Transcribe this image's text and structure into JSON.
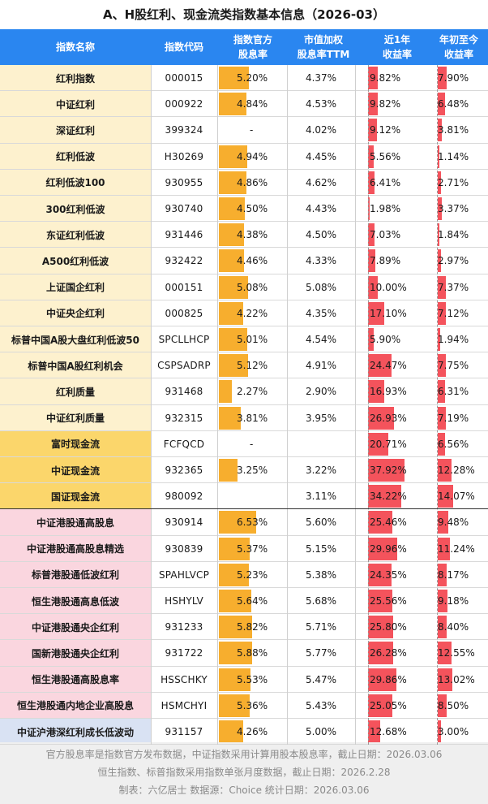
{
  "title": "A、H股红利、现金流类指数基本信息（2026-03）",
  "headers": {
    "name": "指数名称",
    "code": "指数代码",
    "official_yield": [
      "指数官方",
      "股息率"
    ],
    "ttm_yield": [
      "市值加权",
      "股息率TTM"
    ],
    "return_1y": [
      "近1年",
      "收益率"
    ],
    "return_ytd": [
      "年初至今",
      "收益率"
    ]
  },
  "colors": {
    "header": "#2a86f0",
    "yield_bar": "#f7ae2e",
    "return_bar": "#f4535c"
  },
  "rows": [
    {
      "group": "a",
      "name": "红利指数",
      "code": "000015",
      "official": 5.2,
      "official_text": "5.20%",
      "ttm_text": "4.37%",
      "r1y": 9.82,
      "r1y_text": "9.82%",
      "ytd": 7.9,
      "ytd_text": "7.90%"
    },
    {
      "group": "a",
      "name": "中证红利",
      "code": "000922",
      "official": 4.84,
      "official_text": "4.84%",
      "ttm_text": "4.53%",
      "r1y": 9.82,
      "r1y_text": "9.82%",
      "ytd": 6.48,
      "ytd_text": "6.48%"
    },
    {
      "group": "a",
      "name": "深证红利",
      "code": "399324",
      "official": null,
      "official_text": "-",
      "ttm_text": "4.02%",
      "r1y": 9.12,
      "r1y_text": "9.12%",
      "ytd": 3.81,
      "ytd_text": "3.81%"
    },
    {
      "group": "a",
      "name": "红利低波",
      "code": "H30269",
      "official": 4.94,
      "official_text": "4.94%",
      "ttm_text": "4.45%",
      "r1y": 5.56,
      "r1y_text": "5.56%",
      "ytd": 1.14,
      "ytd_text": "1.14%"
    },
    {
      "group": "a",
      "name": "红利低波100",
      "code": "930955",
      "official": 4.86,
      "official_text": "4.86%",
      "ttm_text": "4.62%",
      "r1y": 6.41,
      "r1y_text": "6.41%",
      "ytd": 2.71,
      "ytd_text": "2.71%"
    },
    {
      "group": "a",
      "name": "300红利低波",
      "code": "930740",
      "official": 4.5,
      "official_text": "4.50%",
      "ttm_text": "4.43%",
      "r1y": 1.98,
      "r1y_text": "1.98%",
      "ytd": 3.37,
      "ytd_text": "3.37%"
    },
    {
      "group": "a",
      "name": "东证红利低波",
      "code": "931446",
      "official": 4.38,
      "official_text": "4.38%",
      "ttm_text": "4.50%",
      "r1y": 7.03,
      "r1y_text": "7.03%",
      "ytd": 1.84,
      "ytd_text": "1.84%"
    },
    {
      "group": "a",
      "name": "A500红利低波",
      "code": "932422",
      "official": 4.46,
      "official_text": "4.46%",
      "ttm_text": "4.33%",
      "r1y": 7.89,
      "r1y_text": "7.89%",
      "ytd": 2.97,
      "ytd_text": "2.97%"
    },
    {
      "group": "a",
      "name": "上证国企红利",
      "code": "000151",
      "official": 5.08,
      "official_text": "5.08%",
      "ttm_text": "5.08%",
      "r1y": 10.0,
      "r1y_text": "10.00%",
      "ytd": 7.37,
      "ytd_text": "7.37%"
    },
    {
      "group": "a",
      "name": "中证央企红利",
      "code": "000825",
      "official": 4.22,
      "official_text": "4.22%",
      "ttm_text": "4.35%",
      "r1y": 17.1,
      "r1y_text": "17.10%",
      "ytd": 7.12,
      "ytd_text": "7.12%"
    },
    {
      "group": "a",
      "name": "标普中国A股大盘红利低波50",
      "code": "SPCLLHCP",
      "official": 5.01,
      "official_text": "5.01%",
      "ttm_text": "4.54%",
      "r1y": 5.9,
      "r1y_text": "5.90%",
      "ytd": 1.94,
      "ytd_text": "1.94%"
    },
    {
      "group": "a",
      "name": "标普中国A股红利机会",
      "code": "CSPSADRP",
      "official": 5.12,
      "official_text": "5.12%",
      "ttm_text": "4.91%",
      "r1y": 24.47,
      "r1y_text": "24.47%",
      "ytd": 7.75,
      "ytd_text": "7.75%"
    },
    {
      "group": "a",
      "name": "红利质量",
      "code": "931468",
      "official": 2.27,
      "official_text": "2.27%",
      "ttm_text": "2.90%",
      "r1y": 16.93,
      "r1y_text": "16.93%",
      "ytd": 6.31,
      "ytd_text": "6.31%"
    },
    {
      "group": "a",
      "name": "中证红利质量",
      "code": "932315",
      "official": 3.81,
      "official_text": "3.81%",
      "ttm_text": "3.95%",
      "r1y": 26.93,
      "r1y_text": "26.93%",
      "ytd": 7.19,
      "ytd_text": "7.19%"
    },
    {
      "group": "cash",
      "name": "富时现金流",
      "code": "FCFQCD",
      "official": null,
      "official_text": "-",
      "ttm_text": "",
      "r1y": 20.71,
      "r1y_text": "20.71%",
      "ytd": 6.56,
      "ytd_text": "6.56%"
    },
    {
      "group": "cash",
      "name": "中证现金流",
      "code": "932365",
      "official": 3.25,
      "official_text": "3.25%",
      "ttm_text": "3.22%",
      "r1y": 37.92,
      "r1y_text": "37.92%",
      "ytd": 12.28,
      "ytd_text": "12.28%"
    },
    {
      "group": "cash",
      "name": "国证现金流",
      "code": "980092",
      "official": null,
      "official_text": "",
      "ttm_text": "3.11%",
      "r1y": 34.22,
      "r1y_text": "34.22%",
      "ytd": 14.07,
      "ytd_text": "14.07%"
    },
    {
      "group": "hk",
      "name": "中证港股通高股息",
      "code": "930914",
      "official": 6.53,
      "official_text": "6.53%",
      "ttm_text": "5.60%",
      "r1y": 25.46,
      "r1y_text": "25.46%",
      "ytd": 9.48,
      "ytd_text": "9.48%"
    },
    {
      "group": "hk",
      "name": "中证港股通高股息精选",
      "code": "930839",
      "official": 5.37,
      "official_text": "5.37%",
      "ttm_text": "5.15%",
      "r1y": 29.96,
      "r1y_text": "29.96%",
      "ytd": 11.24,
      "ytd_text": "11.24%"
    },
    {
      "group": "hk",
      "name": "标普港股通低波红利",
      "code": "SPAHLVCP",
      "official": 5.23,
      "official_text": "5.23%",
      "ttm_text": "5.38%",
      "r1y": 24.35,
      "r1y_text": "24.35%",
      "ytd": 8.17,
      "ytd_text": "8.17%"
    },
    {
      "group": "hk",
      "name": "恒生港股通高息低波",
      "code": "HSHYLV",
      "official": 5.64,
      "official_text": "5.64%",
      "ttm_text": "5.68%",
      "r1y": 25.56,
      "r1y_text": "25.56%",
      "ytd": 9.18,
      "ytd_text": "9.18%"
    },
    {
      "group": "hk",
      "name": "中证港股通央企红利",
      "code": "931233",
      "official": 5.82,
      "official_text": "5.82%",
      "ttm_text": "5.71%",
      "r1y": 25.8,
      "r1y_text": "25.80%",
      "ytd": 8.4,
      "ytd_text": "8.40%"
    },
    {
      "group": "hk",
      "name": "国新港股通央企红利",
      "code": "931722",
      "official": 5.88,
      "official_text": "5.88%",
      "ttm_text": "5.77%",
      "r1y": 26.28,
      "r1y_text": "26.28%",
      "ytd": 12.55,
      "ytd_text": "12.55%"
    },
    {
      "group": "hk",
      "name": "恒生港股通高股息率",
      "code": "HSSCHKY",
      "official": 5.53,
      "official_text": "5.53%",
      "ttm_text": "5.47%",
      "r1y": 29.86,
      "r1y_text": "29.86%",
      "ytd": 13.02,
      "ytd_text": "13.02%"
    },
    {
      "group": "hk",
      "name": "恒生港股通内地企业高股息",
      "code": "HSMCHYI",
      "official": 5.36,
      "official_text": "5.36%",
      "ttm_text": "5.43%",
      "r1y": 25.05,
      "r1y_text": "25.05%",
      "ytd": 8.5,
      "ytd_text": "8.50%"
    },
    {
      "group": "low",
      "name": "中证沪港深红利成长低波动",
      "code": "931157",
      "official": 4.26,
      "official_text": "4.26%",
      "ttm_text": "5.00%",
      "r1y": 12.68,
      "r1y_text": "12.68%",
      "ytd": 3.0,
      "ytd_text": "3.00%"
    }
  ],
  "footer": [
    "官方股息率是指数官方发布数据，中证指数采用计算用股本股息率，截止日期：2026.03.06",
    "恒生指数、标普指数采用指数单张月度数据，截止日期：2026.2.28",
    "制表：六亿居士 数据源：Choice 统计日期：2026.03.06"
  ]
}
